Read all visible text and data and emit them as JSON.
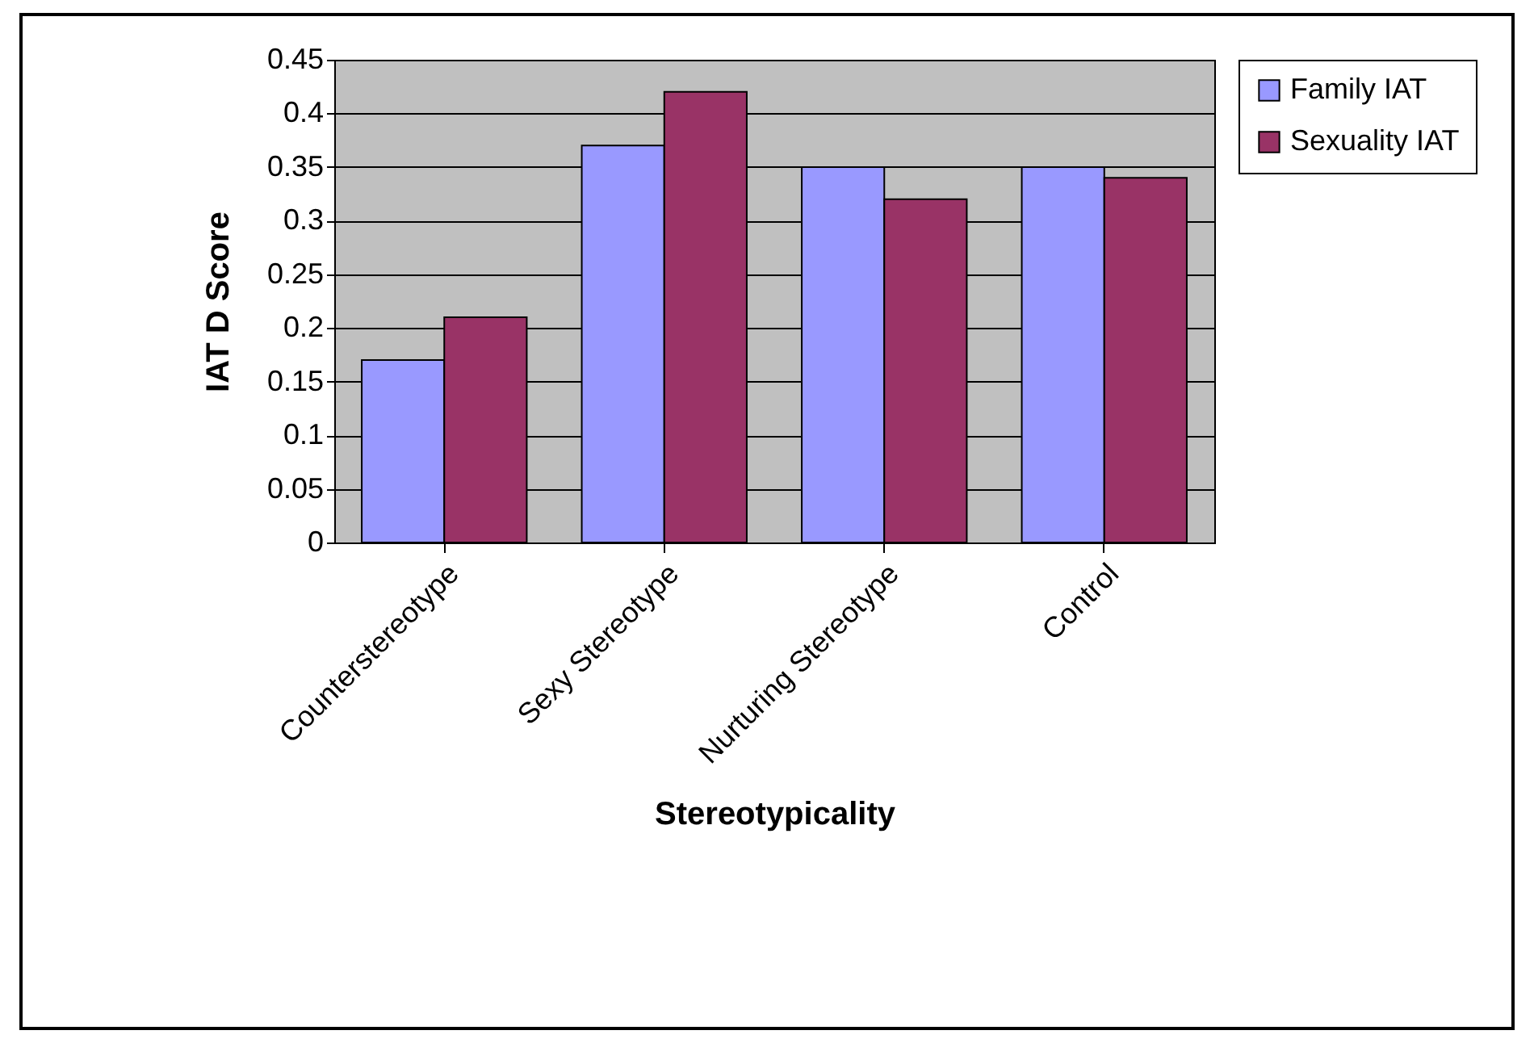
{
  "chart_data": {
    "type": "bar",
    "xlabel": "Stereotypicality",
    "ylabel": "IAT D Score",
    "categories": [
      "Counterstereotype",
      "Sexy Stereotype",
      "Nurturing Stereotype",
      "Control"
    ],
    "series": [
      {
        "name": "Family IAT",
        "color": "#9999ff",
        "values": [
          0.17,
          0.37,
          0.35,
          0.35
        ]
      },
      {
        "name": "Sexuality IAT",
        "color": "#993366",
        "values": [
          0.21,
          0.42,
          0.32,
          0.34
        ]
      }
    ],
    "ylim": [
      0,
      0.45
    ],
    "yticks": [
      0,
      0.05,
      0.1,
      0.15,
      0.2,
      0.25,
      0.3,
      0.35,
      0.4,
      0.45
    ],
    "grid": "y",
    "legend": "right"
  }
}
